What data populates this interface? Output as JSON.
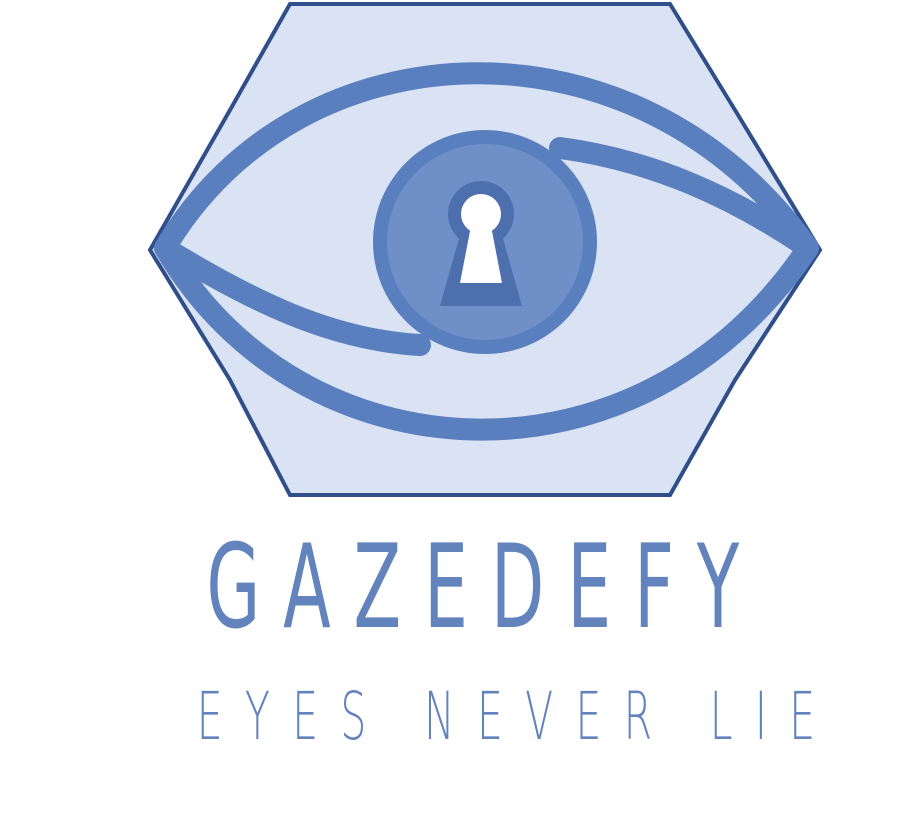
{
  "brand": {
    "name": "GAZEDEFY",
    "tagline": "EYES NEVER LIE"
  },
  "logo": {
    "icon": "eye-keyhole-icon",
    "colors": {
      "hexagon_fill": "#dae3f3",
      "hexagon_stroke": "#2f4e8a",
      "eye_stroke": "#5a7fbf",
      "iris_fill": "#6e8fc8",
      "keyhole": "#ffffff"
    }
  },
  "colors": {
    "text": "#6383bd",
    "background": "#ffffff"
  }
}
